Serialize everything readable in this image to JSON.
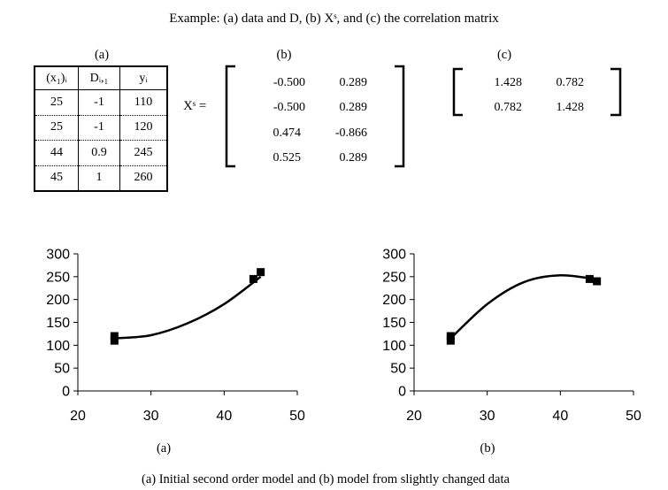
{
  "title": "Example: (a) data and D, (b) Xˢ, and (c) the correlation matrix",
  "panel_labels": {
    "a": "(a)",
    "b": "(b)",
    "c": "(c)"
  },
  "table": {
    "headers": [
      "(x₁)ᵢ",
      "Dᵢ,₁",
      "yᵢ"
    ],
    "rows": [
      [
        "25",
        "-1",
        "110"
      ],
      [
        "25",
        "-1",
        "120"
      ],
      [
        "44",
        "0.9",
        "245"
      ],
      [
        "45",
        "1",
        "260"
      ]
    ]
  },
  "xs_label": "Xˢ =",
  "matrix_b": [
    [
      "-0.500",
      "0.289"
    ],
    [
      "-0.500",
      "0.289"
    ],
    [
      "0.474",
      "-0.866"
    ],
    [
      "0.525",
      "0.289"
    ]
  ],
  "matrix_c": [
    [
      "1.428",
      "0.782"
    ],
    [
      "0.782",
      "1.428"
    ]
  ],
  "chart_data": [
    {
      "type": "scatter",
      "label": "(a)",
      "xlim": [
        20,
        50
      ],
      "ylim": [
        0,
        300
      ],
      "xticks": [
        20,
        30,
        40,
        50
      ],
      "yticks": [
        0,
        50,
        100,
        150,
        200,
        250,
        300
      ],
      "points": [
        [
          25,
          110
        ],
        [
          25,
          120
        ],
        [
          44,
          245
        ],
        [
          45,
          260
        ]
      ],
      "curve": [
        [
          25,
          115
        ],
        [
          30,
          122
        ],
        [
          35,
          148
        ],
        [
          40,
          190
        ],
        [
          45,
          250
        ]
      ]
    },
    {
      "type": "scatter",
      "label": "(b)",
      "xlim": [
        20,
        50
      ],
      "ylim": [
        0,
        300
      ],
      "xticks": [
        20,
        30,
        40,
        50
      ],
      "yticks": [
        0,
        50,
        100,
        150,
        200,
        250,
        300
      ],
      "points": [
        [
          25,
          110
        ],
        [
          25,
          120
        ],
        [
          44,
          245
        ],
        [
          45,
          240
        ]
      ],
      "curve": [
        [
          25,
          115
        ],
        [
          30,
          190
        ],
        [
          35,
          238
        ],
        [
          40,
          253
        ],
        [
          45,
          244
        ]
      ]
    }
  ],
  "caption": "(a) Initial second order model and (b) model from slightly changed data"
}
